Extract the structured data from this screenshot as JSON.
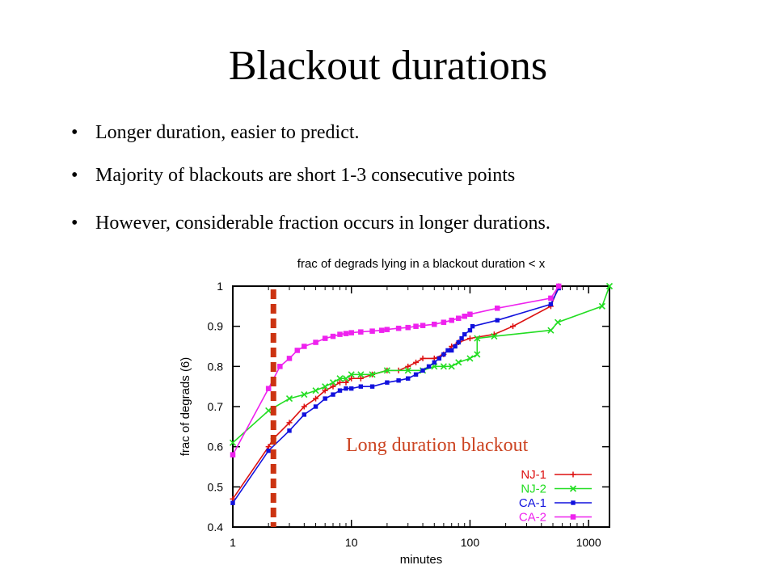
{
  "slide": {
    "title": "Blackout durations",
    "bullets": [
      "Longer duration, easier to predict.",
      "Majority of blackouts are short 1-3 consecutive points",
      "However, considerable fraction occurs in longer durations."
    ]
  },
  "chart_data": {
    "type": "line",
    "title": "frac of degrads lying in a blackout duration < x",
    "xlabel": "minutes",
    "ylabel": "frac of degrads (6)",
    "xscale": "log",
    "xlim": [
      1,
      1500
    ],
    "ylim": [
      0.4,
      1.0
    ],
    "xticks": [
      1,
      10,
      100,
      1000
    ],
    "xtick_labels": [
      "1",
      "10",
      "100",
      "1000"
    ],
    "yticks": [
      0.4,
      0.5,
      0.6,
      0.7,
      0.8,
      0.9,
      1.0
    ],
    "ytick_labels": [
      "0.4",
      "0.5",
      "0.6",
      "0.7",
      "0.8",
      "0.9",
      "1"
    ],
    "grid": false,
    "legend_position": "bottom-right",
    "annotation": {
      "text": "Long duration blackout",
      "color": "#cc4422",
      "marker_x": 2.2,
      "marker_color": "#cc3311"
    },
    "series": [
      {
        "name": "NJ-1",
        "color": "#dd1111",
        "marker": "plus",
        "points": [
          [
            1,
            0.47
          ],
          [
            2,
            0.6
          ],
          [
            2.2,
            0.62
          ],
          [
            3,
            0.66
          ],
          [
            4,
            0.7
          ],
          [
            5,
            0.72
          ],
          [
            6,
            0.74
          ],
          [
            7,
            0.75
          ],
          [
            8,
            0.76
          ],
          [
            9,
            0.76
          ],
          [
            10,
            0.77
          ],
          [
            12,
            0.77
          ],
          [
            15,
            0.78
          ],
          [
            20,
            0.79
          ],
          [
            25,
            0.79
          ],
          [
            30,
            0.8
          ],
          [
            35,
            0.81
          ],
          [
            40,
            0.82
          ],
          [
            50,
            0.82
          ],
          [
            60,
            0.83
          ],
          [
            70,
            0.85
          ],
          [
            80,
            0.86
          ],
          [
            100,
            0.87
          ],
          [
            160,
            0.88
          ],
          [
            230,
            0.9
          ],
          [
            480,
            0.95
          ],
          [
            560,
            1.0
          ]
        ]
      },
      {
        "name": "NJ-2",
        "color": "#22dd22",
        "marker": "cross",
        "points": [
          [
            1,
            0.61
          ],
          [
            2,
            0.69
          ],
          [
            3,
            0.72
          ],
          [
            4,
            0.73
          ],
          [
            5,
            0.74
          ],
          [
            6,
            0.75
          ],
          [
            7,
            0.76
          ],
          [
            8,
            0.77
          ],
          [
            9,
            0.77
          ],
          [
            10,
            0.78
          ],
          [
            12,
            0.78
          ],
          [
            15,
            0.78
          ],
          [
            20,
            0.79
          ],
          [
            30,
            0.79
          ],
          [
            40,
            0.79
          ],
          [
            50,
            0.8
          ],
          [
            60,
            0.8
          ],
          [
            70,
            0.8
          ],
          [
            80,
            0.81
          ],
          [
            100,
            0.82
          ],
          [
            115,
            0.83
          ],
          [
            115,
            0.87
          ],
          [
            160,
            0.875
          ],
          [
            480,
            0.89
          ],
          [
            550,
            0.91
          ],
          [
            1300,
            0.95
          ],
          [
            1500,
            1.0
          ]
        ]
      },
      {
        "name": "CA-1",
        "color": "#1111dd",
        "marker": "box",
        "points": [
          [
            1,
            0.46
          ],
          [
            2,
            0.59
          ],
          [
            3,
            0.64
          ],
          [
            4,
            0.68
          ],
          [
            5,
            0.7
          ],
          [
            6,
            0.72
          ],
          [
            7,
            0.73
          ],
          [
            8,
            0.74
          ],
          [
            9,
            0.745
          ],
          [
            10,
            0.745
          ],
          [
            12,
            0.75
          ],
          [
            15,
            0.75
          ],
          [
            20,
            0.76
          ],
          [
            25,
            0.765
          ],
          [
            30,
            0.77
          ],
          [
            35,
            0.78
          ],
          [
            40,
            0.79
          ],
          [
            45,
            0.8
          ],
          [
            50,
            0.81
          ],
          [
            55,
            0.82
          ],
          [
            60,
            0.83
          ],
          [
            65,
            0.84
          ],
          [
            70,
            0.84
          ],
          [
            75,
            0.85
          ],
          [
            80,
            0.86
          ],
          [
            85,
            0.87
          ],
          [
            90,
            0.88
          ],
          [
            100,
            0.89
          ],
          [
            105,
            0.9
          ],
          [
            170,
            0.915
          ],
          [
            480,
            0.955
          ],
          [
            560,
            0.995
          ]
        ]
      },
      {
        "name": "CA-2",
        "color": "#ee22ee",
        "marker": "fbox",
        "points": [
          [
            1,
            0.58
          ],
          [
            2,
            0.745
          ],
          [
            2.5,
            0.8
          ],
          [
            3,
            0.82
          ],
          [
            3.5,
            0.84
          ],
          [
            4,
            0.85
          ],
          [
            5,
            0.86
          ],
          [
            6,
            0.87
          ],
          [
            7,
            0.875
          ],
          [
            8,
            0.88
          ],
          [
            9,
            0.882
          ],
          [
            10,
            0.884
          ],
          [
            12,
            0.886
          ],
          [
            15,
            0.888
          ],
          [
            18,
            0.89
          ],
          [
            20,
            0.892
          ],
          [
            25,
            0.895
          ],
          [
            30,
            0.897
          ],
          [
            35,
            0.9
          ],
          [
            40,
            0.902
          ],
          [
            50,
            0.905
          ],
          [
            60,
            0.91
          ],
          [
            70,
            0.915
          ],
          [
            80,
            0.92
          ],
          [
            90,
            0.925
          ],
          [
            100,
            0.93
          ],
          [
            170,
            0.945
          ],
          [
            480,
            0.97
          ],
          [
            560,
            1.0
          ]
        ]
      }
    ]
  }
}
